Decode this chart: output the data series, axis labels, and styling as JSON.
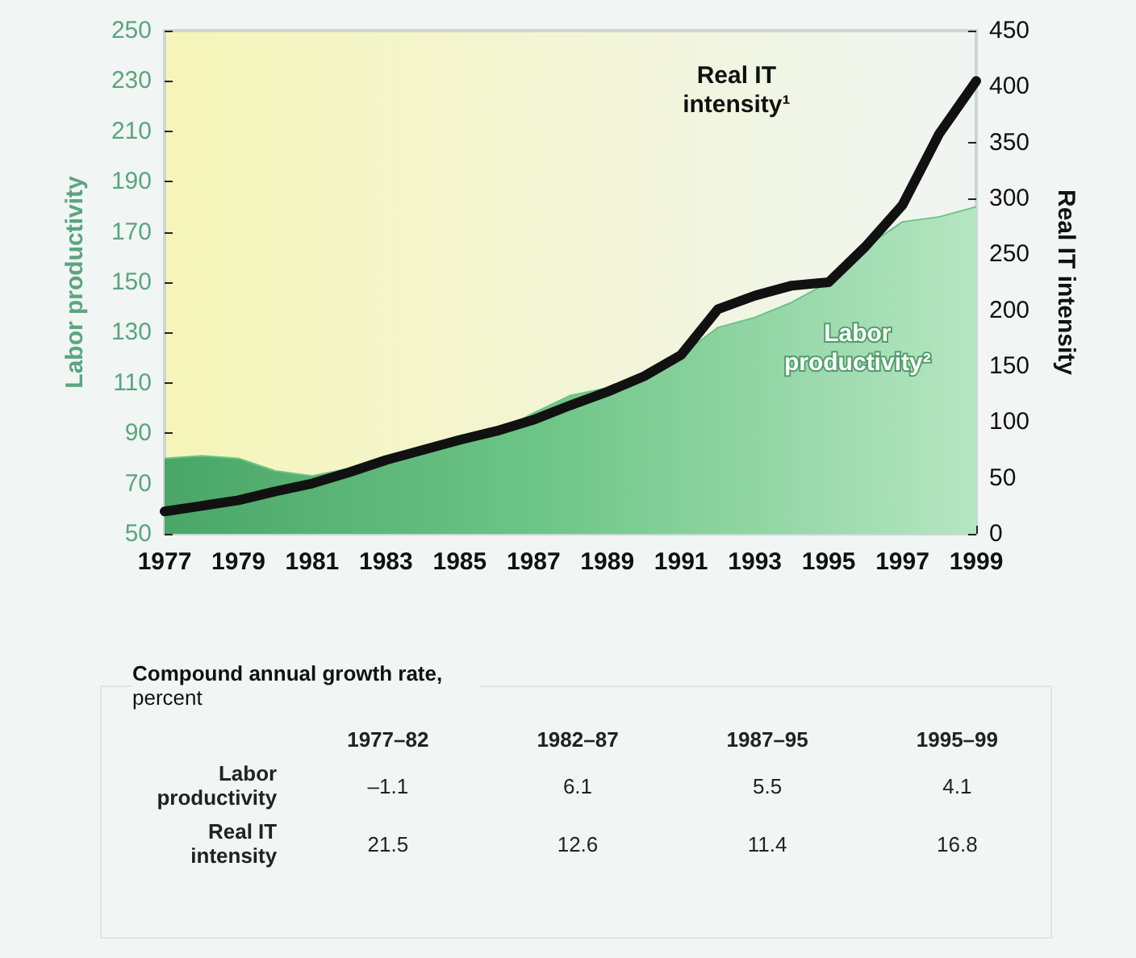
{
  "chart_data": [
    {
      "type": "area",
      "ylabel": "Labor productivity",
      "y2label": "Real IT intensity",
      "x": [
        1977,
        1978,
        1979,
        1980,
        1981,
        1982,
        1983,
        1984,
        1985,
        1986,
        1987,
        1988,
        1989,
        1990,
        1991,
        1992,
        1993,
        1994,
        1995,
        1996,
        1997,
        1998,
        1999
      ],
      "series": [
        {
          "name": "Labor productivity²",
          "type": "area",
          "color": "#6cc486",
          "values": [
            80,
            81,
            80,
            75,
            73,
            76,
            80,
            83,
            87,
            90,
            98,
            105,
            108,
            113,
            121,
            132,
            136,
            142,
            150,
            164,
            174,
            176,
            180
          ]
        },
        {
          "name": "Real IT intensity¹",
          "type": "line",
          "axis": "y2",
          "color": "#111111",
          "values": [
            20,
            25,
            30,
            38,
            45,
            55,
            66,
            75,
            84,
            92,
            102,
            115,
            127,
            141,
            160,
            201,
            213,
            222,
            225,
            257,
            294,
            358,
            405
          ]
        }
      ],
      "xlim": [
        1977,
        1999
      ],
      "xticks": [
        1977,
        1979,
        1981,
        1983,
        1985,
        1987,
        1989,
        1991,
        1993,
        1995,
        1997,
        1999
      ],
      "ylim": [
        50,
        250
      ],
      "yticks": [
        50,
        70,
        90,
        110,
        130,
        150,
        170,
        190,
        210,
        230,
        250
      ],
      "y2lim": [
        0,
        450
      ],
      "y2ticks": [
        0,
        50,
        100,
        150,
        200,
        250,
        300,
        350,
        400,
        450
      ],
      "grid": false,
      "legend": false,
      "marker": "none",
      "line_style": "solid"
    },
    {
      "type": "other",
      "title": "Compound annual growth rate, percent",
      "categories": [
        "1977–82",
        "1982–87",
        "1987–95",
        "1995–99"
      ],
      "series": [
        {
          "name": "Labor productivity",
          "values": [
            -1.1,
            6.1,
            5.5,
            4.1
          ],
          "value_labels": [
            "–1.1",
            "6.1",
            "5.5",
            "4.1"
          ]
        },
        {
          "name": "Real IT intensity",
          "values": [
            21.5,
            12.6,
            11.4,
            16.8
          ]
        }
      ],
      "data_labels": true
    }
  ]
}
